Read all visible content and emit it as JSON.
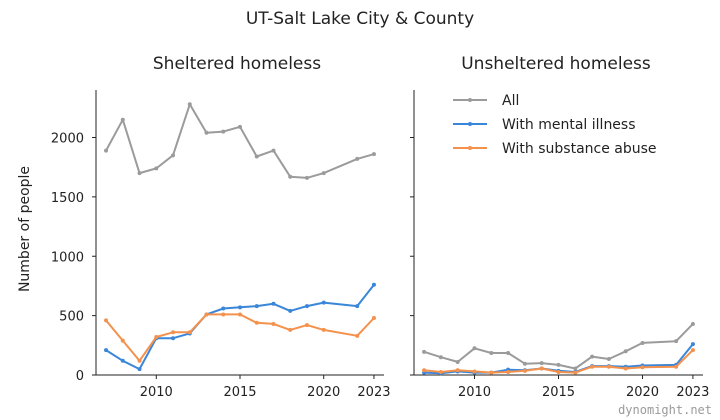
{
  "figure": {
    "title": "UT-Salt Lake City & County",
    "ylabel": "Number of people",
    "watermark": "dynomight.net"
  },
  "legend": [
    {
      "name": "All",
      "color": "#9b9b9b"
    },
    {
      "name": "With mental illness",
      "color": "#3a86d8"
    },
    {
      "name": "With substance abuse",
      "color": "#f4914c"
    }
  ],
  "chart_data": [
    {
      "type": "line",
      "title": "Sheltered homeless",
      "ylabel": "Number of people",
      "xlim": [
        2006.4,
        2023.6
      ],
      "ylim": [
        0,
        2400
      ],
      "xticks": [
        2010,
        2015,
        2020,
        2023
      ],
      "yticks": [
        0,
        500,
        1000,
        1500,
        2000
      ],
      "x": [
        2007,
        2008,
        2009,
        2010,
        2011,
        2012,
        2013,
        2014,
        2015,
        2016,
        2017,
        2018,
        2019,
        2020,
        2022,
        2023
      ],
      "series": [
        {
          "name": "All",
          "color": "#9b9b9b",
          "values": [
            1890,
            2150,
            1700,
            1740,
            1850,
            2280,
            2040,
            2050,
            2090,
            1840,
            1890,
            1670,
            1660,
            1700,
            1820,
            1860
          ]
        },
        {
          "name": "With mental illness",
          "color": "#3a86d8",
          "values": [
            210,
            120,
            50,
            310,
            310,
            350,
            510,
            560,
            570,
            580,
            600,
            540,
            580,
            610,
            580,
            760
          ]
        },
        {
          "name": "With substance abuse",
          "color": "#f4914c",
          "values": [
            460,
            290,
            120,
            320,
            360,
            360,
            510,
            510,
            510,
            440,
            430,
            380,
            420,
            380,
            330,
            480
          ]
        }
      ]
    },
    {
      "type": "line",
      "title": "Unsheltered homeless",
      "xlim": [
        2006.4,
        2023.6
      ],
      "ylim": [
        0,
        2400
      ],
      "xticks": [
        2010,
        2015,
        2020,
        2023
      ],
      "yticks": [
        0,
        500,
        1000,
        1500,
        2000
      ],
      "x": [
        2007,
        2008,
        2009,
        2010,
        2011,
        2012,
        2013,
        2014,
        2015,
        2016,
        2017,
        2018,
        2019,
        2020,
        2022,
        2023
      ],
      "series": [
        {
          "name": "All",
          "color": "#9b9b9b",
          "values": [
            195,
            150,
            110,
            225,
            185,
            185,
            95,
            100,
            85,
            55,
            155,
            135,
            200,
            270,
            285,
            430
          ]
        },
        {
          "name": "With mental illness",
          "color": "#3a86d8",
          "values": [
            20,
            15,
            30,
            20,
            20,
            45,
            40,
            55,
            35,
            25,
            75,
            75,
            70,
            80,
            85,
            260
          ]
        },
        {
          "name": "With substance abuse",
          "color": "#f4914c",
          "values": [
            40,
            25,
            40,
            30,
            20,
            25,
            35,
            55,
            25,
            20,
            70,
            70,
            55,
            65,
            70,
            210
          ]
        }
      ]
    }
  ]
}
